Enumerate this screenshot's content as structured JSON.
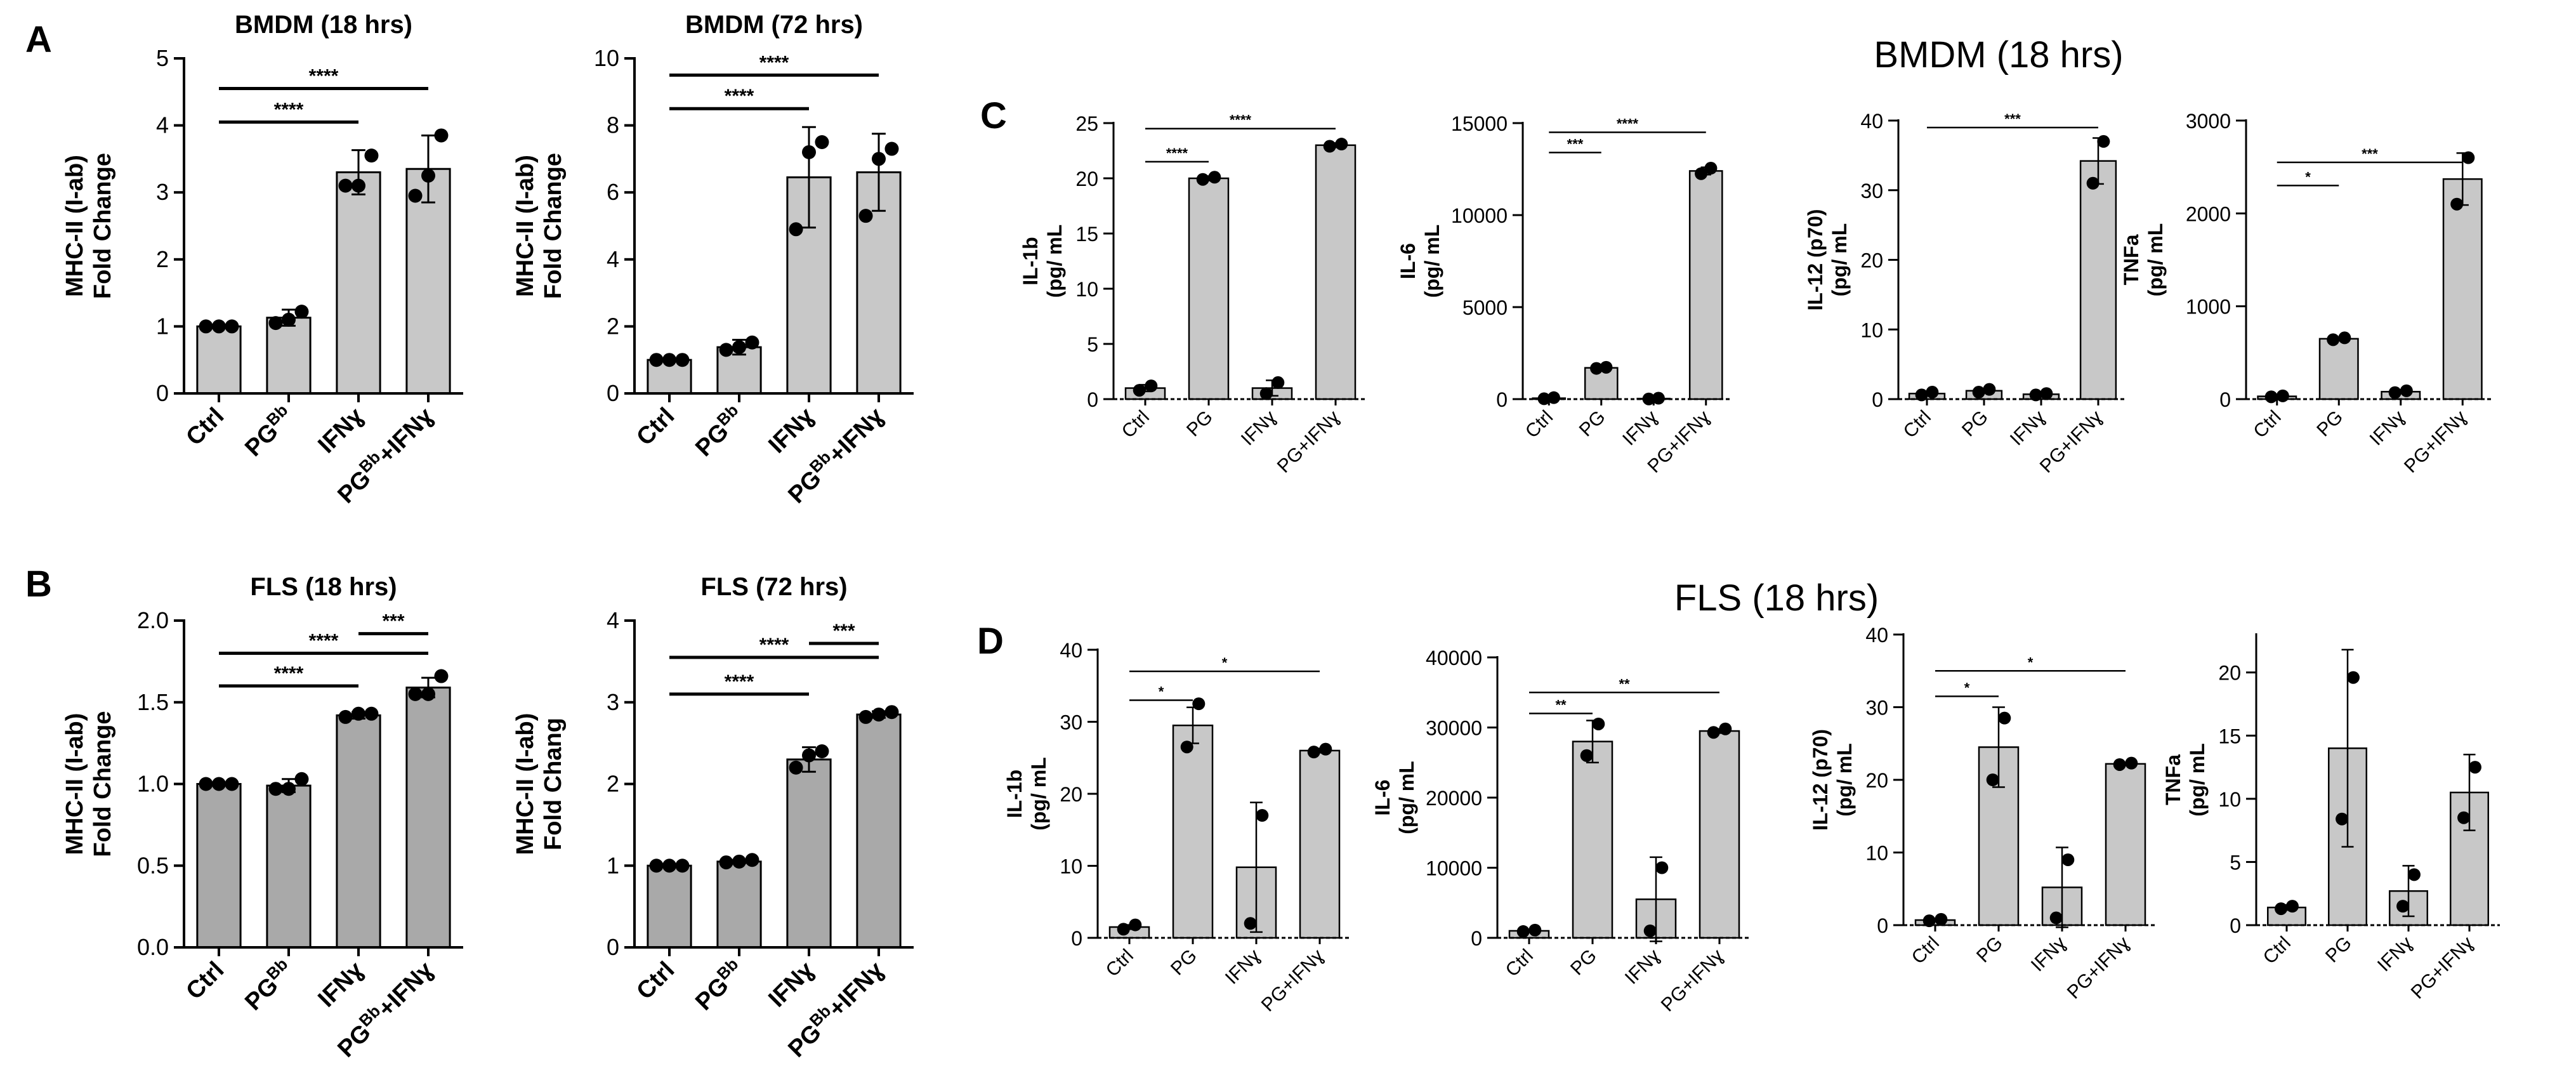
{
  "colors": {
    "bar_dark": "#a9a9a9",
    "bar_light": "#c8c8c8",
    "axis": "#000000",
    "dot": "#000000"
  },
  "section_titles": {
    "top": "BMDM (18 hrs)",
    "bottom": "FLS (18 hrs)"
  },
  "chart_data": [
    {
      "id": "A1",
      "panel": "A",
      "type": "bar",
      "title": "BMDM (18 hrs)",
      "ylabel": [
        "MHC-II (I-ab)",
        "Fold Change"
      ],
      "ylim": [
        0,
        5
      ],
      "yticks": [
        0,
        1,
        2,
        3,
        4,
        5
      ],
      "ytick_labels": [
        "0",
        "1",
        "2",
        "3",
        "4",
        "5"
      ],
      "categories": [
        {
          "base": "Ctrl",
          "sup": ""
        },
        {
          "base": "PG",
          "sup": "Bb"
        },
        {
          "base": "IFNɣ",
          "sup": ""
        },
        {
          "base": "PG",
          "sup": "Bb",
          "tail": "+IFNɣ"
        }
      ],
      "values": [
        1.0,
        1.13,
        3.3,
        3.35
      ],
      "errors": [
        0.02,
        0.12,
        0.33,
        0.5
      ],
      "points": [
        [
          1.0,
          1.0,
          1.0
        ],
        [
          1.05,
          1.1,
          1.22
        ],
        [
          3.1,
          3.1,
          3.55
        ],
        [
          2.95,
          3.25,
          3.85
        ]
      ],
      "comparisons": [
        {
          "from": 0,
          "to": 2,
          "label": "****",
          "y": 4.05
        },
        {
          "from": 0,
          "to": 3,
          "label": "****",
          "y": 4.55
        }
      ]
    },
    {
      "id": "A2",
      "panel": "",
      "type": "bar",
      "title": "BMDM (72 hrs)",
      "ylabel": [
        "MHC-II (I-ab)",
        "Fold Change"
      ],
      "ylim": [
        0,
        10
      ],
      "yticks": [
        0,
        2,
        4,
        6,
        8,
        10
      ],
      "ytick_labels": [
        "0",
        "2",
        "4",
        "6",
        "8",
        "10"
      ],
      "categories": [
        {
          "base": "Ctrl",
          "sup": ""
        },
        {
          "base": "PG",
          "sup": "Bb"
        },
        {
          "base": "IFNɣ",
          "sup": ""
        },
        {
          "base": "PG",
          "sup": "Bb",
          "tail": "+IFNɣ"
        }
      ],
      "values": [
        1.0,
        1.38,
        6.45,
        6.6
      ],
      "errors": [
        0.03,
        0.22,
        1.5,
        1.15
      ],
      "points": [
        [
          1.0,
          1.0,
          1.0
        ],
        [
          1.3,
          1.38,
          1.52
        ],
        [
          4.9,
          7.2,
          7.5
        ],
        [
          5.3,
          7.0,
          7.3
        ]
      ],
      "comparisons": [
        {
          "from": 0,
          "to": 2,
          "label": "****",
          "y": 8.5
        },
        {
          "from": 0,
          "to": 3,
          "label": "****",
          "y": 9.5
        }
      ]
    },
    {
      "id": "B1",
      "panel": "B",
      "type": "bar",
      "title": "FLS (18 hrs)",
      "ylabel": [
        "MHC-II (I-ab)",
        "Fold Change"
      ],
      "ylim": [
        0,
        2.0
      ],
      "yticks": [
        0,
        0.5,
        1.0,
        1.5,
        2.0
      ],
      "ytick_labels": [
        "0.0",
        "0.5",
        "1.0",
        "1.5",
        "2.0"
      ],
      "categories": [
        {
          "base": "Ctrl",
          "sup": ""
        },
        {
          "base": "PG",
          "sup": "Bb"
        },
        {
          "base": "IFNɣ",
          "sup": ""
        },
        {
          "base": "PG",
          "sup": "Bb",
          "tail": "+IFNɣ"
        }
      ],
      "values": [
        1.0,
        0.99,
        1.42,
        1.59
      ],
      "errors": [
        0.005,
        0.04,
        0.02,
        0.06
      ],
      "points": [
        [
          1.0,
          1.0,
          1.0
        ],
        [
          0.97,
          0.97,
          1.03
        ],
        [
          1.41,
          1.43,
          1.43
        ],
        [
          1.55,
          1.55,
          1.66
        ]
      ],
      "comparisons": [
        {
          "from": 0,
          "to": 2,
          "label": "****",
          "y": 1.6
        },
        {
          "from": 0,
          "to": 3,
          "label": "****",
          "y": 1.8
        },
        {
          "from": 2,
          "to": 3,
          "label": "***",
          "y": 1.92
        }
      ]
    },
    {
      "id": "B2",
      "panel": "",
      "type": "bar",
      "title": "FLS (72 hrs)",
      "ylabel": [
        "MHC-II (I-ab)",
        "Fold Chang"
      ],
      "ylim": [
        0,
        4
      ],
      "yticks": [
        0,
        1,
        2,
        3,
        4
      ],
      "ytick_labels": [
        "0",
        "1",
        "2",
        "3",
        "4"
      ],
      "categories": [
        {
          "base": "Ctrl",
          "sup": ""
        },
        {
          "base": "PG",
          "sup": "Bb"
        },
        {
          "base": "IFNɣ",
          "sup": ""
        },
        {
          "base": "PG",
          "sup": "Bb",
          "tail": "+IFNɣ"
        }
      ],
      "values": [
        1.0,
        1.05,
        2.3,
        2.85
      ],
      "errors": [
        0.01,
        0.02,
        0.15,
        0.04
      ],
      "points": [
        [
          1.0,
          1.0,
          1.0
        ],
        [
          1.04,
          1.05,
          1.07
        ],
        [
          2.2,
          2.35,
          2.4
        ],
        [
          2.82,
          2.85,
          2.88
        ]
      ],
      "comparisons": [
        {
          "from": 0,
          "to": 2,
          "label": "****",
          "y": 3.1
        },
        {
          "from": 0,
          "to": 3,
          "label": "****",
          "y": 3.55
        },
        {
          "from": 2,
          "to": 3,
          "label": "***",
          "y": 3.72
        }
      ]
    },
    {
      "id": "C1",
      "panel": "C",
      "type": "bar",
      "title": "",
      "ylabel": [
        "IL-1b",
        "(pg/ mL"
      ],
      "ylim": [
        0,
        25
      ],
      "yticks": [
        0,
        5,
        10,
        15,
        20,
        25
      ],
      "ytick_labels": [
        "0",
        "5",
        "10",
        "15",
        "20",
        "25"
      ],
      "categories": [
        {
          "base": "Ctrl"
        },
        {
          "base": "PG"
        },
        {
          "base": "IFNɣ"
        },
        {
          "base": "PG+IFNɣ"
        }
      ],
      "values": [
        1.0,
        20.0,
        1.0,
        23.0
      ],
      "errors": [
        0.3,
        0.2,
        0.7,
        0.2
      ],
      "points": [
        [
          0.8,
          1.2
        ],
        [
          19.9,
          20.1
        ],
        [
          0.5,
          1.5
        ],
        [
          22.9,
          23.1
        ]
      ],
      "comparisons": [
        {
          "from": 0,
          "to": 1,
          "label": "****",
          "y": 21.5
        },
        {
          "from": 0,
          "to": 3,
          "label": "****",
          "y": 24.5
        }
      ]
    },
    {
      "id": "C2",
      "panel": "",
      "type": "bar",
      "title": "",
      "ylabel": [
        "IL-6",
        "(pg/ mL"
      ],
      "ylim": [
        0,
        15000
      ],
      "yticks": [
        0,
        5000,
        10000,
        15000
      ],
      "ytick_labels": [
        "0",
        "5000",
        "10000",
        "15000"
      ],
      "categories": [
        {
          "base": "Ctrl"
        },
        {
          "base": "PG"
        },
        {
          "base": "IFNɣ"
        },
        {
          "base": "PG+IFNɣ"
        }
      ],
      "values": [
        50,
        1700,
        30,
        12400
      ],
      "errors": [
        30,
        60,
        20,
        200
      ],
      "points": [
        [
          20,
          80
        ],
        [
          1670,
          1730
        ],
        [
          10,
          50
        ],
        [
          12250,
          12550
        ]
      ],
      "comparisons": [
        {
          "from": 0,
          "to": 1,
          "label": "***",
          "y": 13400
        },
        {
          "from": 0,
          "to": 3,
          "label": "****",
          "y": 14500
        }
      ]
    },
    {
      "id": "C3",
      "panel": "",
      "type": "bar",
      "title": "",
      "ylabel": [
        "IL-12 (p70)",
        "(pg/ mL"
      ],
      "ylim": [
        0,
        40
      ],
      "yticks": [
        0,
        10,
        20,
        30,
        40
      ],
      "ytick_labels": [
        "0",
        "10",
        "20",
        "30",
        "40"
      ],
      "categories": [
        {
          "base": "Ctrl"
        },
        {
          "base": "PG"
        },
        {
          "base": "IFNɣ"
        },
        {
          "base": "PG+IFNɣ"
        }
      ],
      "values": [
        0.8,
        1.2,
        0.7,
        34.2
      ],
      "errors": [
        0.3,
        0.3,
        0.2,
        3.3
      ],
      "points": [
        [
          0.6,
          1.0
        ],
        [
          1.0,
          1.4
        ],
        [
          0.6,
          0.8
        ],
        [
          31.0,
          37.0
        ]
      ],
      "comparisons": [
        {
          "from": 0,
          "to": 3,
          "label": "***",
          "y": 39
        }
      ]
    },
    {
      "id": "C4",
      "panel": "",
      "type": "bar",
      "title": "",
      "ylabel": [
        "TNFa",
        "(pg/ mL"
      ],
      "ylim": [
        0,
        3000
      ],
      "yticks": [
        0,
        1000,
        2000,
        3000
      ],
      "ytick_labels": [
        "0",
        "1000",
        "2000",
        "3000"
      ],
      "categories": [
        {
          "base": "Ctrl"
        },
        {
          "base": "PG"
        },
        {
          "base": "IFNɣ"
        },
        {
          "base": "PG+IFNɣ"
        }
      ],
      "values": [
        30,
        650,
        80,
        2370
      ],
      "errors": [
        10,
        15,
        20,
        280
      ],
      "points": [
        [
          25,
          35
        ],
        [
          640,
          660
        ],
        [
          70,
          90
        ],
        [
          2100,
          2600
        ]
      ],
      "comparisons": [
        {
          "from": 0,
          "to": 1,
          "label": "*",
          "y": 2300
        },
        {
          "from": 0,
          "to": 3,
          "label": "***",
          "y": 2550
        }
      ]
    },
    {
      "id": "D1",
      "panel": "D",
      "type": "bar",
      "title": "",
      "ylabel": [
        "IL-1b",
        "(pg/ mL"
      ],
      "ylim": [
        0,
        40
      ],
      "yticks": [
        0,
        10,
        20,
        30,
        40
      ],
      "ytick_labels": [
        "0",
        "10",
        "20",
        "30",
        "40"
      ],
      "categories": [
        {
          "base": "Ctrl"
        },
        {
          "base": "PG"
        },
        {
          "base": "IFNɣ"
        },
        {
          "base": "PG+IFNɣ"
        }
      ],
      "values": [
        1.5,
        29.5,
        9.8,
        26.0
      ],
      "errors": [
        0.3,
        2.5,
        9.0,
        0.3
      ],
      "points": [
        [
          1.2,
          1.8
        ],
        [
          26.5,
          32.5
        ],
        [
          2.0,
          17.0
        ],
        [
          25.8,
          26.2
        ]
      ],
      "comparisons": [
        {
          "from": 0,
          "to": 1,
          "label": "*",
          "y": 33
        },
        {
          "from": 0,
          "to": 3,
          "label": "*",
          "y": 37
        }
      ]
    },
    {
      "id": "D2",
      "panel": "",
      "type": "bar",
      "title": "",
      "ylabel": [
        "IL-6",
        "(pg/ mL"
      ],
      "ylim": [
        0,
        40000
      ],
      "yticks": [
        0,
        10000,
        20000,
        30000,
        40000
      ],
      "ytick_labels": [
        "0",
        "10000",
        "20000",
        "30000",
        "40000"
      ],
      "categories": [
        {
          "base": "Ctrl"
        },
        {
          "base": "PG"
        },
        {
          "base": "IFNɣ"
        },
        {
          "base": "PG+IFNɣ"
        }
      ],
      "values": [
        1000,
        28000,
        5500,
        29500
      ],
      "errors": [
        200,
        3000,
        6000,
        300
      ],
      "points": [
        [
          900,
          1100
        ],
        [
          26000,
          30500
        ],
        [
          1000,
          10000
        ],
        [
          29300,
          29800
        ]
      ],
      "comparisons": [
        {
          "from": 0,
          "to": 1,
          "label": "**",
          "y": 32000
        },
        {
          "from": 0,
          "to": 3,
          "label": "**",
          "y": 35000
        }
      ]
    },
    {
      "id": "D3",
      "panel": "",
      "type": "bar",
      "title": "",
      "ylabel": [
        "IL-12 (p70)",
        "(pg/ mL"
      ],
      "ylim": [
        0,
        40
      ],
      "yticks": [
        0,
        10,
        20,
        30,
        40
      ],
      "ytick_labels": [
        "0",
        "10",
        "20",
        "30",
        "40"
      ],
      "categories": [
        {
          "base": "Ctrl"
        },
        {
          "base": "PG"
        },
        {
          "base": "IFNɣ"
        },
        {
          "base": "PG+IFNɣ"
        }
      ],
      "values": [
        0.7,
        24.5,
        5.2,
        22.2
      ],
      "errors": [
        0.2,
        5.5,
        5.5,
        0.1
      ],
      "points": [
        [
          0.6,
          0.8
        ],
        [
          20.0,
          28.5
        ],
        [
          1.0,
          9.0
        ],
        [
          22.1,
          22.3
        ]
      ],
      "comparisons": [
        {
          "from": 0,
          "to": 1,
          "label": "*",
          "y": 31.5
        },
        {
          "from": 0,
          "to": 3,
          "label": "*",
          "y": 35
        }
      ]
    },
    {
      "id": "D4",
      "panel": "",
      "type": "bar",
      "title": "",
      "ylabel": [
        "TNFa",
        "(pg/ mL"
      ],
      "ylim": [
        0,
        23
      ],
      "yticks": [
        0,
        5,
        10,
        15,
        20
      ],
      "ytick_labels": [
        "0",
        "5",
        "10",
        "15",
        "20"
      ],
      "categories": [
        {
          "base": "Ctrl"
        },
        {
          "base": "PG"
        },
        {
          "base": "IFNɣ"
        },
        {
          "base": "PG+IFNɣ"
        }
      ],
      "values": [
        1.4,
        14.0,
        2.7,
        10.5
      ],
      "errors": [
        0.2,
        7.8,
        2.0,
        3.0
      ],
      "points": [
        [
          1.3,
          1.5
        ],
        [
          8.4,
          19.6
        ],
        [
          1.5,
          4.0
        ],
        [
          8.5,
          12.5
        ]
      ],
      "comparisons": []
    }
  ]
}
